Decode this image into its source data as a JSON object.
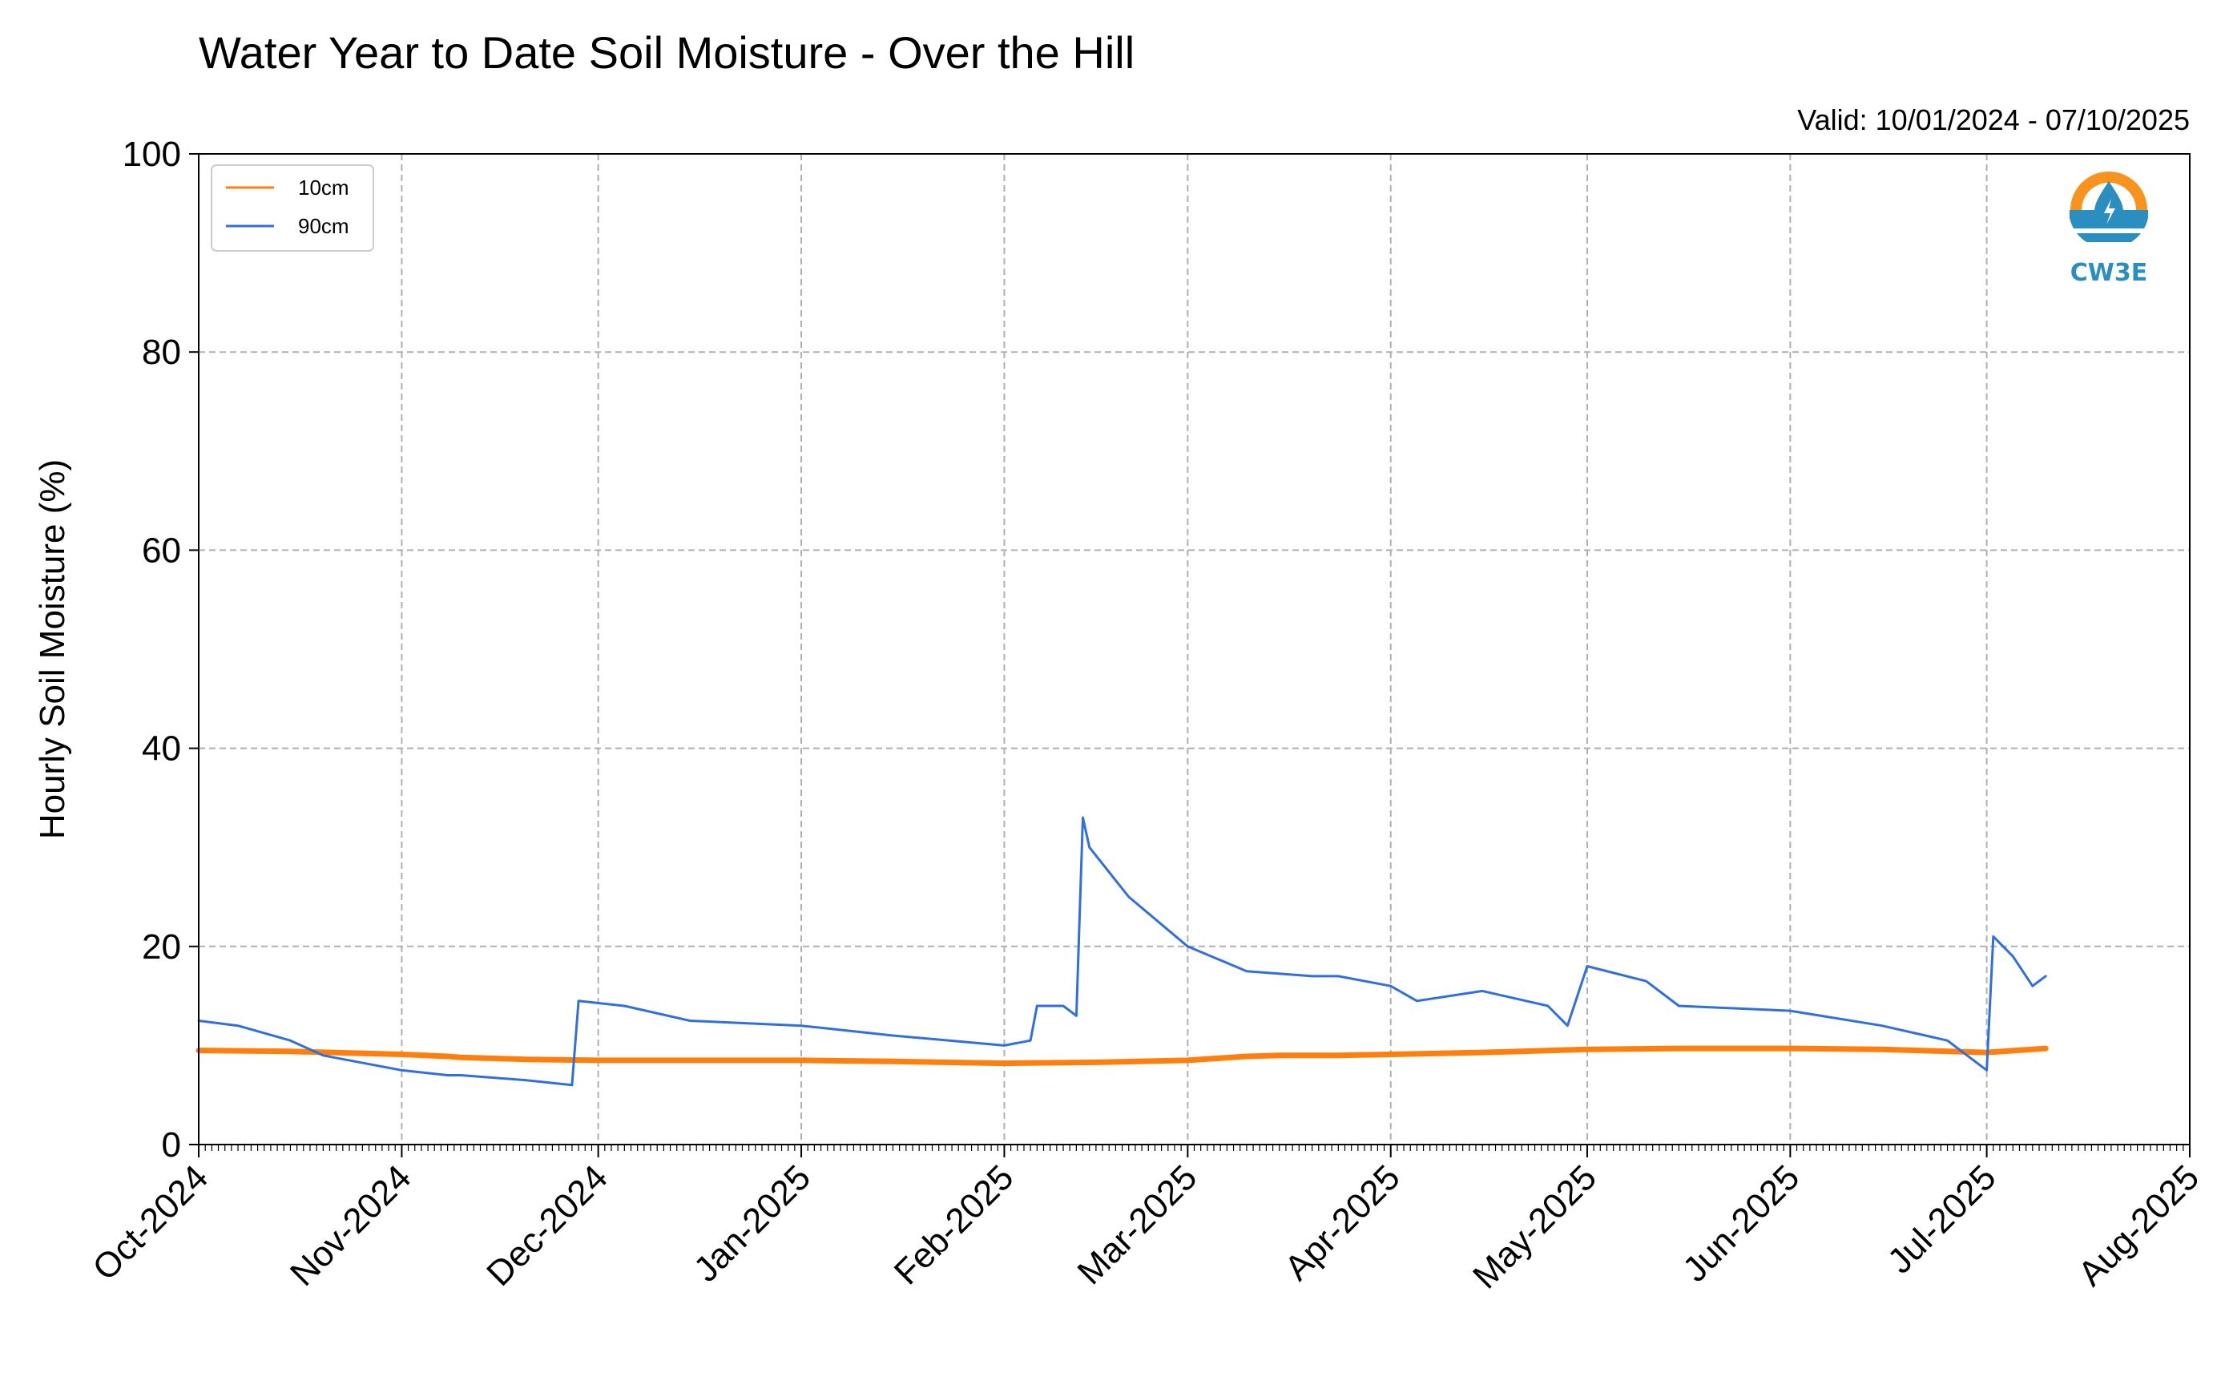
{
  "colors": {
    "series_10cm": "#ff7f0e",
    "series_90cm": "#2f6fe0",
    "grid": "#b0b0b0",
    "logo_orange": "#f7931e",
    "logo_blue": "#2a8fc0"
  },
  "logo": {
    "icon": "cw3e-logo-icon",
    "text": "CW3E"
  },
  "chart_data": {
    "type": "line",
    "title": "Water Year to Date Soil Moisture - Over the Hill",
    "subtitle": "Valid: 10/01/2024 - 07/10/2025",
    "xlabel": "",
    "ylabel": "Hourly Soil Moisture (%)",
    "ylim": [
      0,
      100
    ],
    "xlim": [
      "2024-10-01",
      "2025-08-01"
    ],
    "yticks": [
      "0",
      "20",
      "40",
      "60",
      "80",
      "100"
    ],
    "xticks": [
      "Oct-2024",
      "Nov-2024",
      "Dec-2024",
      "Jan-2025",
      "Feb-2025",
      "Mar-2025",
      "Apr-2025",
      "May-2025",
      "Jun-2025",
      "Jul-2025",
      "Aug-2025"
    ],
    "grid": true,
    "legend_position": "top-left",
    "series": [
      {
        "name": "10cm",
        "x": [
          "2024-10-01",
          "2024-10-15",
          "2024-11-01",
          "2024-11-08",
          "2024-11-10",
          "2024-11-20",
          "2024-12-01",
          "2024-12-15",
          "2025-01-01",
          "2025-01-15",
          "2025-02-01",
          "2025-02-15",
          "2025-03-01",
          "2025-03-10",
          "2025-03-15",
          "2025-03-24",
          "2025-04-01",
          "2025-04-15",
          "2025-05-01",
          "2025-05-15",
          "2025-06-01",
          "2025-06-15",
          "2025-07-01",
          "2025-07-10"
        ],
        "y": [
          9.5,
          9.4,
          9.1,
          8.9,
          8.8,
          8.6,
          8.5,
          8.5,
          8.5,
          8.4,
          8.2,
          8.3,
          8.5,
          8.9,
          9.0,
          9.0,
          9.1,
          9.3,
          9.6,
          9.7,
          9.7,
          9.6,
          9.3,
          9.7
        ]
      },
      {
        "name": "90cm",
        "x": [
          "2024-10-01",
          "2024-10-07",
          "2024-10-15",
          "2024-10-20",
          "2024-11-01",
          "2024-11-08",
          "2024-11-10",
          "2024-11-20",
          "2024-11-27",
          "2024-11-28",
          "2024-12-05",
          "2024-12-15",
          "2025-01-01",
          "2025-01-15",
          "2025-02-01",
          "2025-02-05",
          "2025-02-06",
          "2025-02-10",
          "2025-02-12",
          "2025-02-13",
          "2025-02-14",
          "2025-02-20",
          "2025-03-01",
          "2025-03-10",
          "2025-03-20",
          "2025-03-24",
          "2025-04-01",
          "2025-04-05",
          "2025-04-15",
          "2025-04-25",
          "2025-04-28",
          "2025-05-01",
          "2025-05-10",
          "2025-05-15",
          "2025-06-01",
          "2025-06-15",
          "2025-06-25",
          "2025-07-01",
          "2025-07-02",
          "2025-07-05",
          "2025-07-08",
          "2025-07-10"
        ],
        "y": [
          12.5,
          12,
          10.5,
          9,
          7.5,
          7,
          7,
          6.5,
          6,
          14.5,
          14,
          12.5,
          12,
          11,
          10,
          10.5,
          14,
          14,
          13,
          33,
          30,
          25,
          20,
          17.5,
          17,
          17,
          16,
          14.5,
          15.5,
          14,
          12,
          18,
          16.5,
          14,
          13.5,
          12,
          10.5,
          7.5,
          21,
          19,
          16,
          17
        ]
      }
    ]
  }
}
